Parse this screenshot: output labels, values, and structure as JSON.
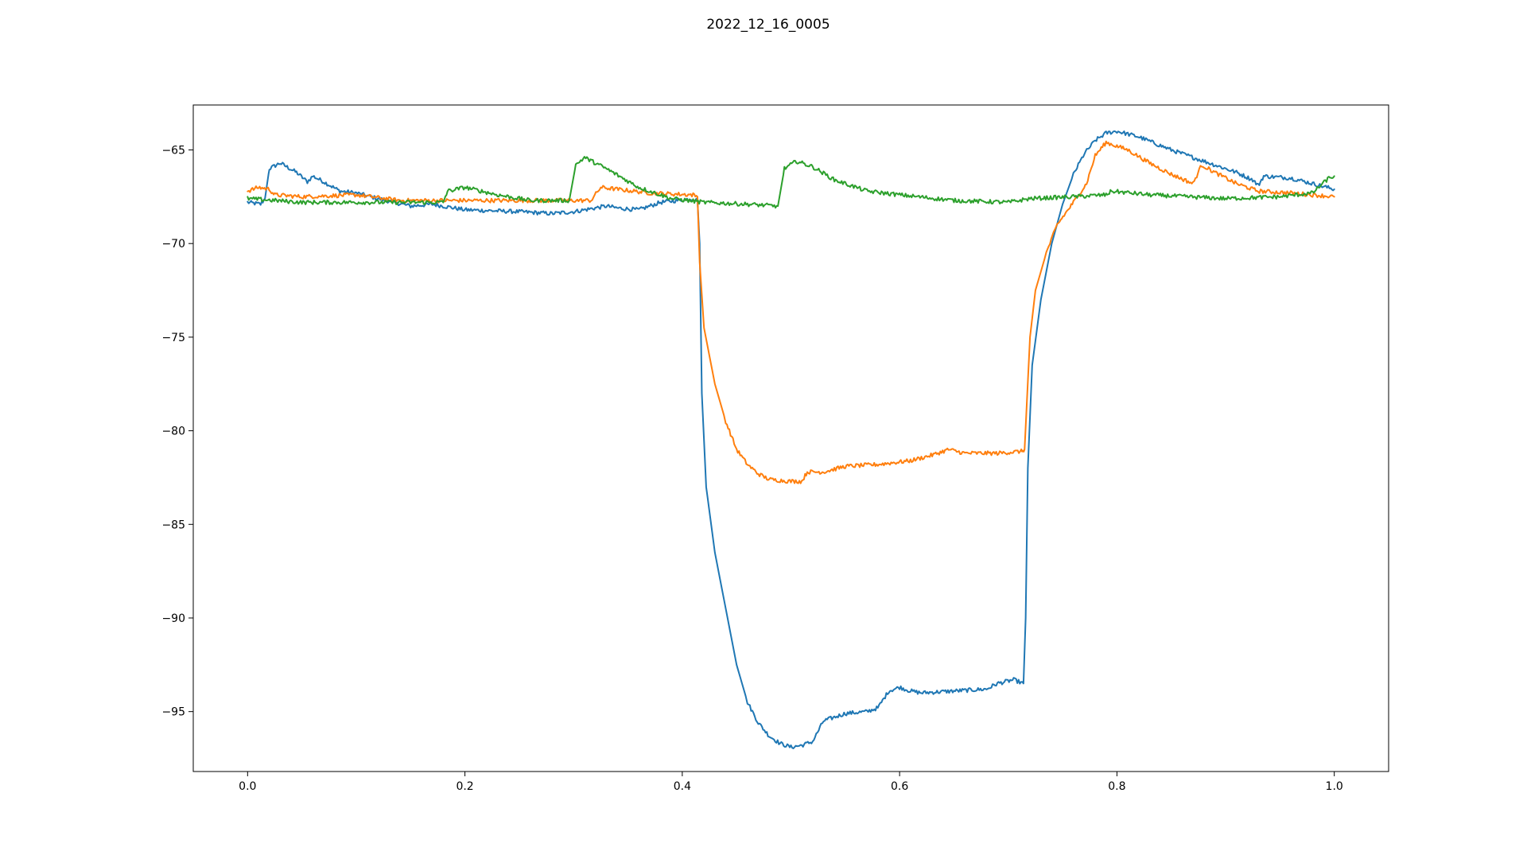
{
  "chart_data": {
    "type": "line",
    "title": "2022_12_16_0005",
    "xlabel": "",
    "ylabel": "",
    "xlim": [
      -0.05,
      1.05
    ],
    "ylim": [
      -98.2,
      -62.6
    ],
    "x_ticks": [
      0.0,
      0.2,
      0.4,
      0.6,
      0.8,
      1.0
    ],
    "x_tick_labels": [
      "0.0",
      "0.2",
      "0.4",
      "0.6",
      "0.8",
      "1.0"
    ],
    "y_ticks": [
      -65,
      -70,
      -75,
      -80,
      -85,
      -90,
      -95
    ],
    "y_tick_labels": [
      "−65",
      "−70",
      "−75",
      "−80",
      "−85",
      "−90",
      "−95"
    ],
    "grid": false,
    "legend": "none",
    "series": [
      {
        "color": "#1f77b4",
        "points": [
          [
            0.0,
            -67.8
          ],
          [
            0.012,
            -67.9
          ],
          [
            0.016,
            -67.6
          ],
          [
            0.02,
            -66.0
          ],
          [
            0.03,
            -65.7
          ],
          [
            0.045,
            -66.2
          ],
          [
            0.055,
            -66.7
          ],
          [
            0.06,
            -66.4
          ],
          [
            0.07,
            -66.7
          ],
          [
            0.085,
            -67.2
          ],
          [
            0.1,
            -67.3
          ],
          [
            0.12,
            -67.6
          ],
          [
            0.15,
            -68.0
          ],
          [
            0.17,
            -67.9
          ],
          [
            0.2,
            -68.2
          ],
          [
            0.25,
            -68.3
          ],
          [
            0.28,
            -68.4
          ],
          [
            0.3,
            -68.3
          ],
          [
            0.33,
            -68.0
          ],
          [
            0.34,
            -68.1
          ],
          [
            0.36,
            -68.2
          ],
          [
            0.38,
            -67.8
          ],
          [
            0.41,
            -67.6
          ],
          [
            0.414,
            -67.7
          ],
          [
            0.416,
            -70.0
          ],
          [
            0.418,
            -78.0
          ],
          [
            0.422,
            -83.0
          ],
          [
            0.43,
            -86.5
          ],
          [
            0.44,
            -89.5
          ],
          [
            0.45,
            -92.5
          ],
          [
            0.46,
            -94.5
          ],
          [
            0.47,
            -95.6
          ],
          [
            0.48,
            -96.3
          ],
          [
            0.49,
            -96.7
          ],
          [
            0.5,
            -96.9
          ],
          [
            0.51,
            -96.8
          ],
          [
            0.52,
            -96.6
          ],
          [
            0.53,
            -95.5
          ],
          [
            0.55,
            -95.1
          ],
          [
            0.57,
            -95.0
          ],
          [
            0.58,
            -94.8
          ],
          [
            0.59,
            -93.9
          ],
          [
            0.6,
            -93.7
          ],
          [
            0.61,
            -93.9
          ],
          [
            0.62,
            -94.0
          ],
          [
            0.65,
            -93.9
          ],
          [
            0.68,
            -93.8
          ],
          [
            0.69,
            -93.5
          ],
          [
            0.705,
            -93.3
          ],
          [
            0.714,
            -93.5
          ],
          [
            0.716,
            -90.0
          ],
          [
            0.718,
            -82.0
          ],
          [
            0.722,
            -76.5
          ],
          [
            0.73,
            -73.0
          ],
          [
            0.74,
            -70.0
          ],
          [
            0.75,
            -67.9
          ],
          [
            0.76,
            -66.3
          ],
          [
            0.77,
            -65.2
          ],
          [
            0.78,
            -64.5
          ],
          [
            0.79,
            -64.1
          ],
          [
            0.8,
            -64.0
          ],
          [
            0.82,
            -64.3
          ],
          [
            0.85,
            -65.0
          ],
          [
            0.88,
            -65.6
          ],
          [
            0.91,
            -66.2
          ],
          [
            0.925,
            -66.6
          ],
          [
            0.93,
            -66.9
          ],
          [
            0.935,
            -66.4
          ],
          [
            0.96,
            -66.5
          ],
          [
            0.98,
            -66.8
          ],
          [
            1.0,
            -67.1
          ]
        ]
      },
      {
        "color": "#ff7f0e",
        "points": [
          [
            0.0,
            -67.2
          ],
          [
            0.01,
            -67.0
          ],
          [
            0.02,
            -67.1
          ],
          [
            0.025,
            -67.4
          ],
          [
            0.05,
            -67.5
          ],
          [
            0.1,
            -67.4
          ],
          [
            0.14,
            -67.7
          ],
          [
            0.2,
            -67.7
          ],
          [
            0.25,
            -67.7
          ],
          [
            0.3,
            -67.7
          ],
          [
            0.316,
            -67.7
          ],
          [
            0.325,
            -67.0
          ],
          [
            0.34,
            -67.1
          ],
          [
            0.37,
            -67.3
          ],
          [
            0.41,
            -67.4
          ],
          [
            0.414,
            -67.5
          ],
          [
            0.416,
            -71.0
          ],
          [
            0.42,
            -74.5
          ],
          [
            0.43,
            -77.5
          ],
          [
            0.44,
            -79.5
          ],
          [
            0.45,
            -81.0
          ],
          [
            0.46,
            -81.8
          ],
          [
            0.47,
            -82.3
          ],
          [
            0.48,
            -82.6
          ],
          [
            0.5,
            -82.7
          ],
          [
            0.51,
            -82.7
          ],
          [
            0.515,
            -82.2
          ],
          [
            0.53,
            -82.2
          ],
          [
            0.55,
            -81.9
          ],
          [
            0.58,
            -81.8
          ],
          [
            0.61,
            -81.6
          ],
          [
            0.63,
            -81.3
          ],
          [
            0.645,
            -81.0
          ],
          [
            0.66,
            -81.2
          ],
          [
            0.69,
            -81.2
          ],
          [
            0.712,
            -81.1
          ],
          [
            0.715,
            -81.0
          ],
          [
            0.72,
            -75.0
          ],
          [
            0.725,
            -72.5
          ],
          [
            0.735,
            -70.5
          ],
          [
            0.745,
            -69.0
          ],
          [
            0.76,
            -67.8
          ],
          [
            0.772,
            -66.8
          ],
          [
            0.78,
            -65.3
          ],
          [
            0.79,
            -64.6
          ],
          [
            0.81,
            -65.0
          ],
          [
            0.83,
            -65.7
          ],
          [
            0.85,
            -66.3
          ],
          [
            0.87,
            -66.8
          ],
          [
            0.878,
            -65.8
          ],
          [
            0.89,
            -66.2
          ],
          [
            0.91,
            -66.8
          ],
          [
            0.93,
            -67.2
          ],
          [
            0.96,
            -67.3
          ],
          [
            0.98,
            -67.4
          ],
          [
            1.0,
            -67.5
          ]
        ]
      },
      {
        "color": "#2ca02c",
        "points": [
          [
            0.0,
            -67.6
          ],
          [
            0.05,
            -67.8
          ],
          [
            0.1,
            -67.8
          ],
          [
            0.18,
            -67.8
          ],
          [
            0.184,
            -67.2
          ],
          [
            0.2,
            -67.0
          ],
          [
            0.23,
            -67.4
          ],
          [
            0.26,
            -67.7
          ],
          [
            0.296,
            -67.7
          ],
          [
            0.302,
            -65.8
          ],
          [
            0.31,
            -65.4
          ],
          [
            0.33,
            -66.0
          ],
          [
            0.36,
            -67.0
          ],
          [
            0.39,
            -67.6
          ],
          [
            0.42,
            -67.8
          ],
          [
            0.46,
            -67.9
          ],
          [
            0.488,
            -68.0
          ],
          [
            0.494,
            -66.0
          ],
          [
            0.505,
            -65.6
          ],
          [
            0.52,
            -65.9
          ],
          [
            0.54,
            -66.6
          ],
          [
            0.57,
            -67.2
          ],
          [
            0.6,
            -67.4
          ],
          [
            0.65,
            -67.7
          ],
          [
            0.7,
            -67.8
          ],
          [
            0.72,
            -67.6
          ],
          [
            0.76,
            -67.5
          ],
          [
            0.79,
            -67.4
          ],
          [
            0.795,
            -67.2
          ],
          [
            0.83,
            -67.4
          ],
          [
            0.9,
            -67.6
          ],
          [
            0.95,
            -67.5
          ],
          [
            0.98,
            -67.3
          ],
          [
            0.995,
            -66.5
          ],
          [
            1.0,
            -66.4
          ]
        ]
      }
    ]
  }
}
